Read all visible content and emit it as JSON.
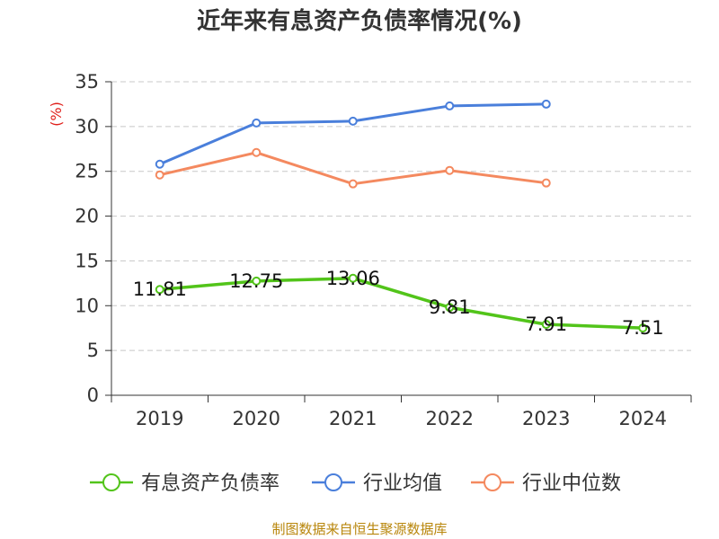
{
  "chart_data": {
    "type": "line",
    "title": "近年来有息资产负债率情况(%)",
    "ylabel": "(%)",
    "xlabel": "",
    "categories": [
      "2019",
      "2020",
      "2021",
      "2022",
      "2023",
      "2024"
    ],
    "ylim": [
      0,
      35
    ],
    "yticks": [
      0,
      5,
      10,
      15,
      20,
      25,
      30,
      35
    ],
    "grid": true,
    "legend_position": "bottom",
    "series": [
      {
        "name": "有息资产负债率",
        "color": "#52c41a",
        "values": [
          11.81,
          12.75,
          13.06,
          9.81,
          7.91,
          7.51
        ],
        "labels": [
          "11.81",
          "12.75",
          "13.06",
          "9.81",
          "7.91",
          "7.51"
        ]
      },
      {
        "name": "行业均值",
        "color": "#4a7fdb",
        "values": [
          25.8,
          30.4,
          30.6,
          32.3,
          32.5,
          null
        ]
      },
      {
        "name": "行业中位数",
        "color": "#f4895f",
        "values": [
          24.6,
          27.1,
          23.6,
          25.1,
          23.7,
          null
        ]
      }
    ],
    "source": "制图数据来自恒生聚源数据库"
  }
}
